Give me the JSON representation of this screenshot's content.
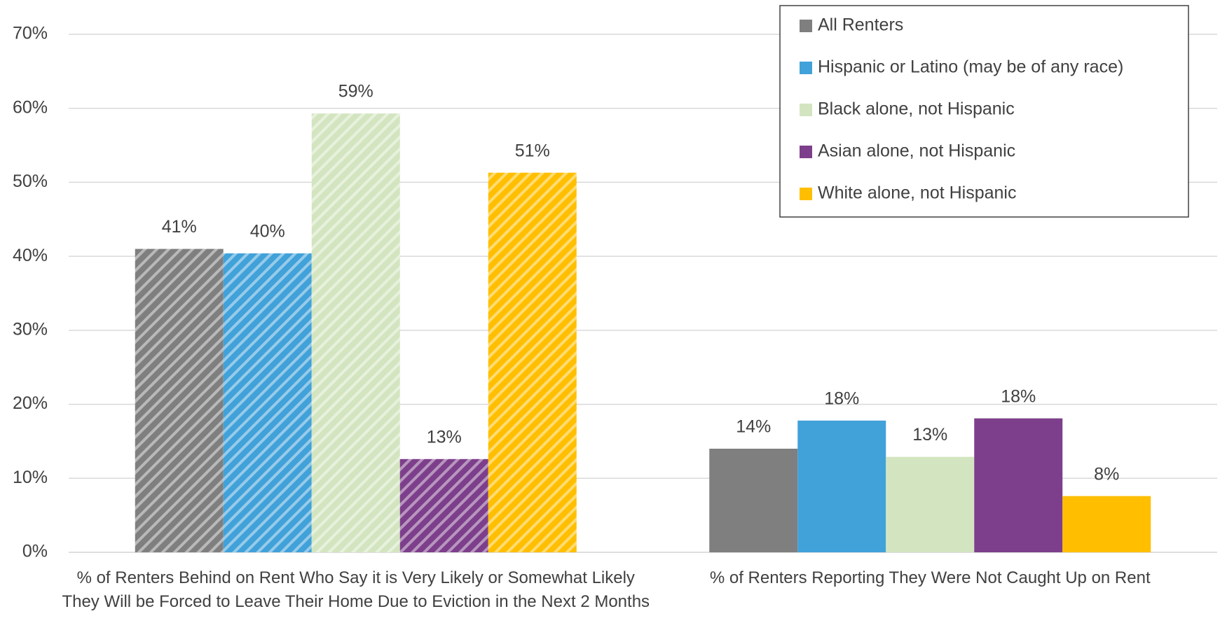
{
  "chart_data": {
    "type": "bar",
    "categories": [
      "% of Renters Behind on Rent Who Say it is Very Likely or Somewhat Likely They Will be Forced to Leave Their Home Due to Eviction in the Next 2 Months",
      "% of Renters Reporting They Were Not Caught Up on Rent"
    ],
    "hatch": [
      true,
      false
    ],
    "series": [
      {
        "name": "All Renters",
        "color": "#7f7f7f",
        "values": [
          41,
          14
        ],
        "value_labels": [
          "41%",
          "14%"
        ]
      },
      {
        "name": "Hispanic or Latino (may be of any race)",
        "color": "#41a1d9",
        "values": [
          40.4,
          17.8
        ],
        "value_labels": [
          "40%",
          "18%"
        ]
      },
      {
        "name": "Black alone, not Hispanic",
        "color": "#d3e5c0",
        "values": [
          59.3,
          12.9
        ],
        "value_labels": [
          "59%",
          "13%"
        ]
      },
      {
        "name": "Asian alone, not Hispanic",
        "color": "#7d3f8b",
        "values": [
          12.6,
          18.1
        ],
        "value_labels": [
          "13%",
          "18%"
        ]
      },
      {
        "name": "White alone, not Hispanic",
        "color": "#ffbf00",
        "values": [
          51.3,
          7.6
        ],
        "value_labels": [
          "51%",
          "8%"
        ]
      }
    ],
    "ylim": [
      0,
      70
    ],
    "yticks": [
      {
        "value": 0,
        "label": "0%"
      },
      {
        "value": 10,
        "label": "10%"
      },
      {
        "value": 20,
        "label": "20%"
      },
      {
        "value": 30,
        "label": "30%"
      },
      {
        "value": 40,
        "label": "40%"
      },
      {
        "value": 50,
        "label": "50%"
      },
      {
        "value": 60,
        "label": "60%"
      },
      {
        "value": 70,
        "label": "70%"
      }
    ],
    "grid": true,
    "legend": "upper right"
  }
}
